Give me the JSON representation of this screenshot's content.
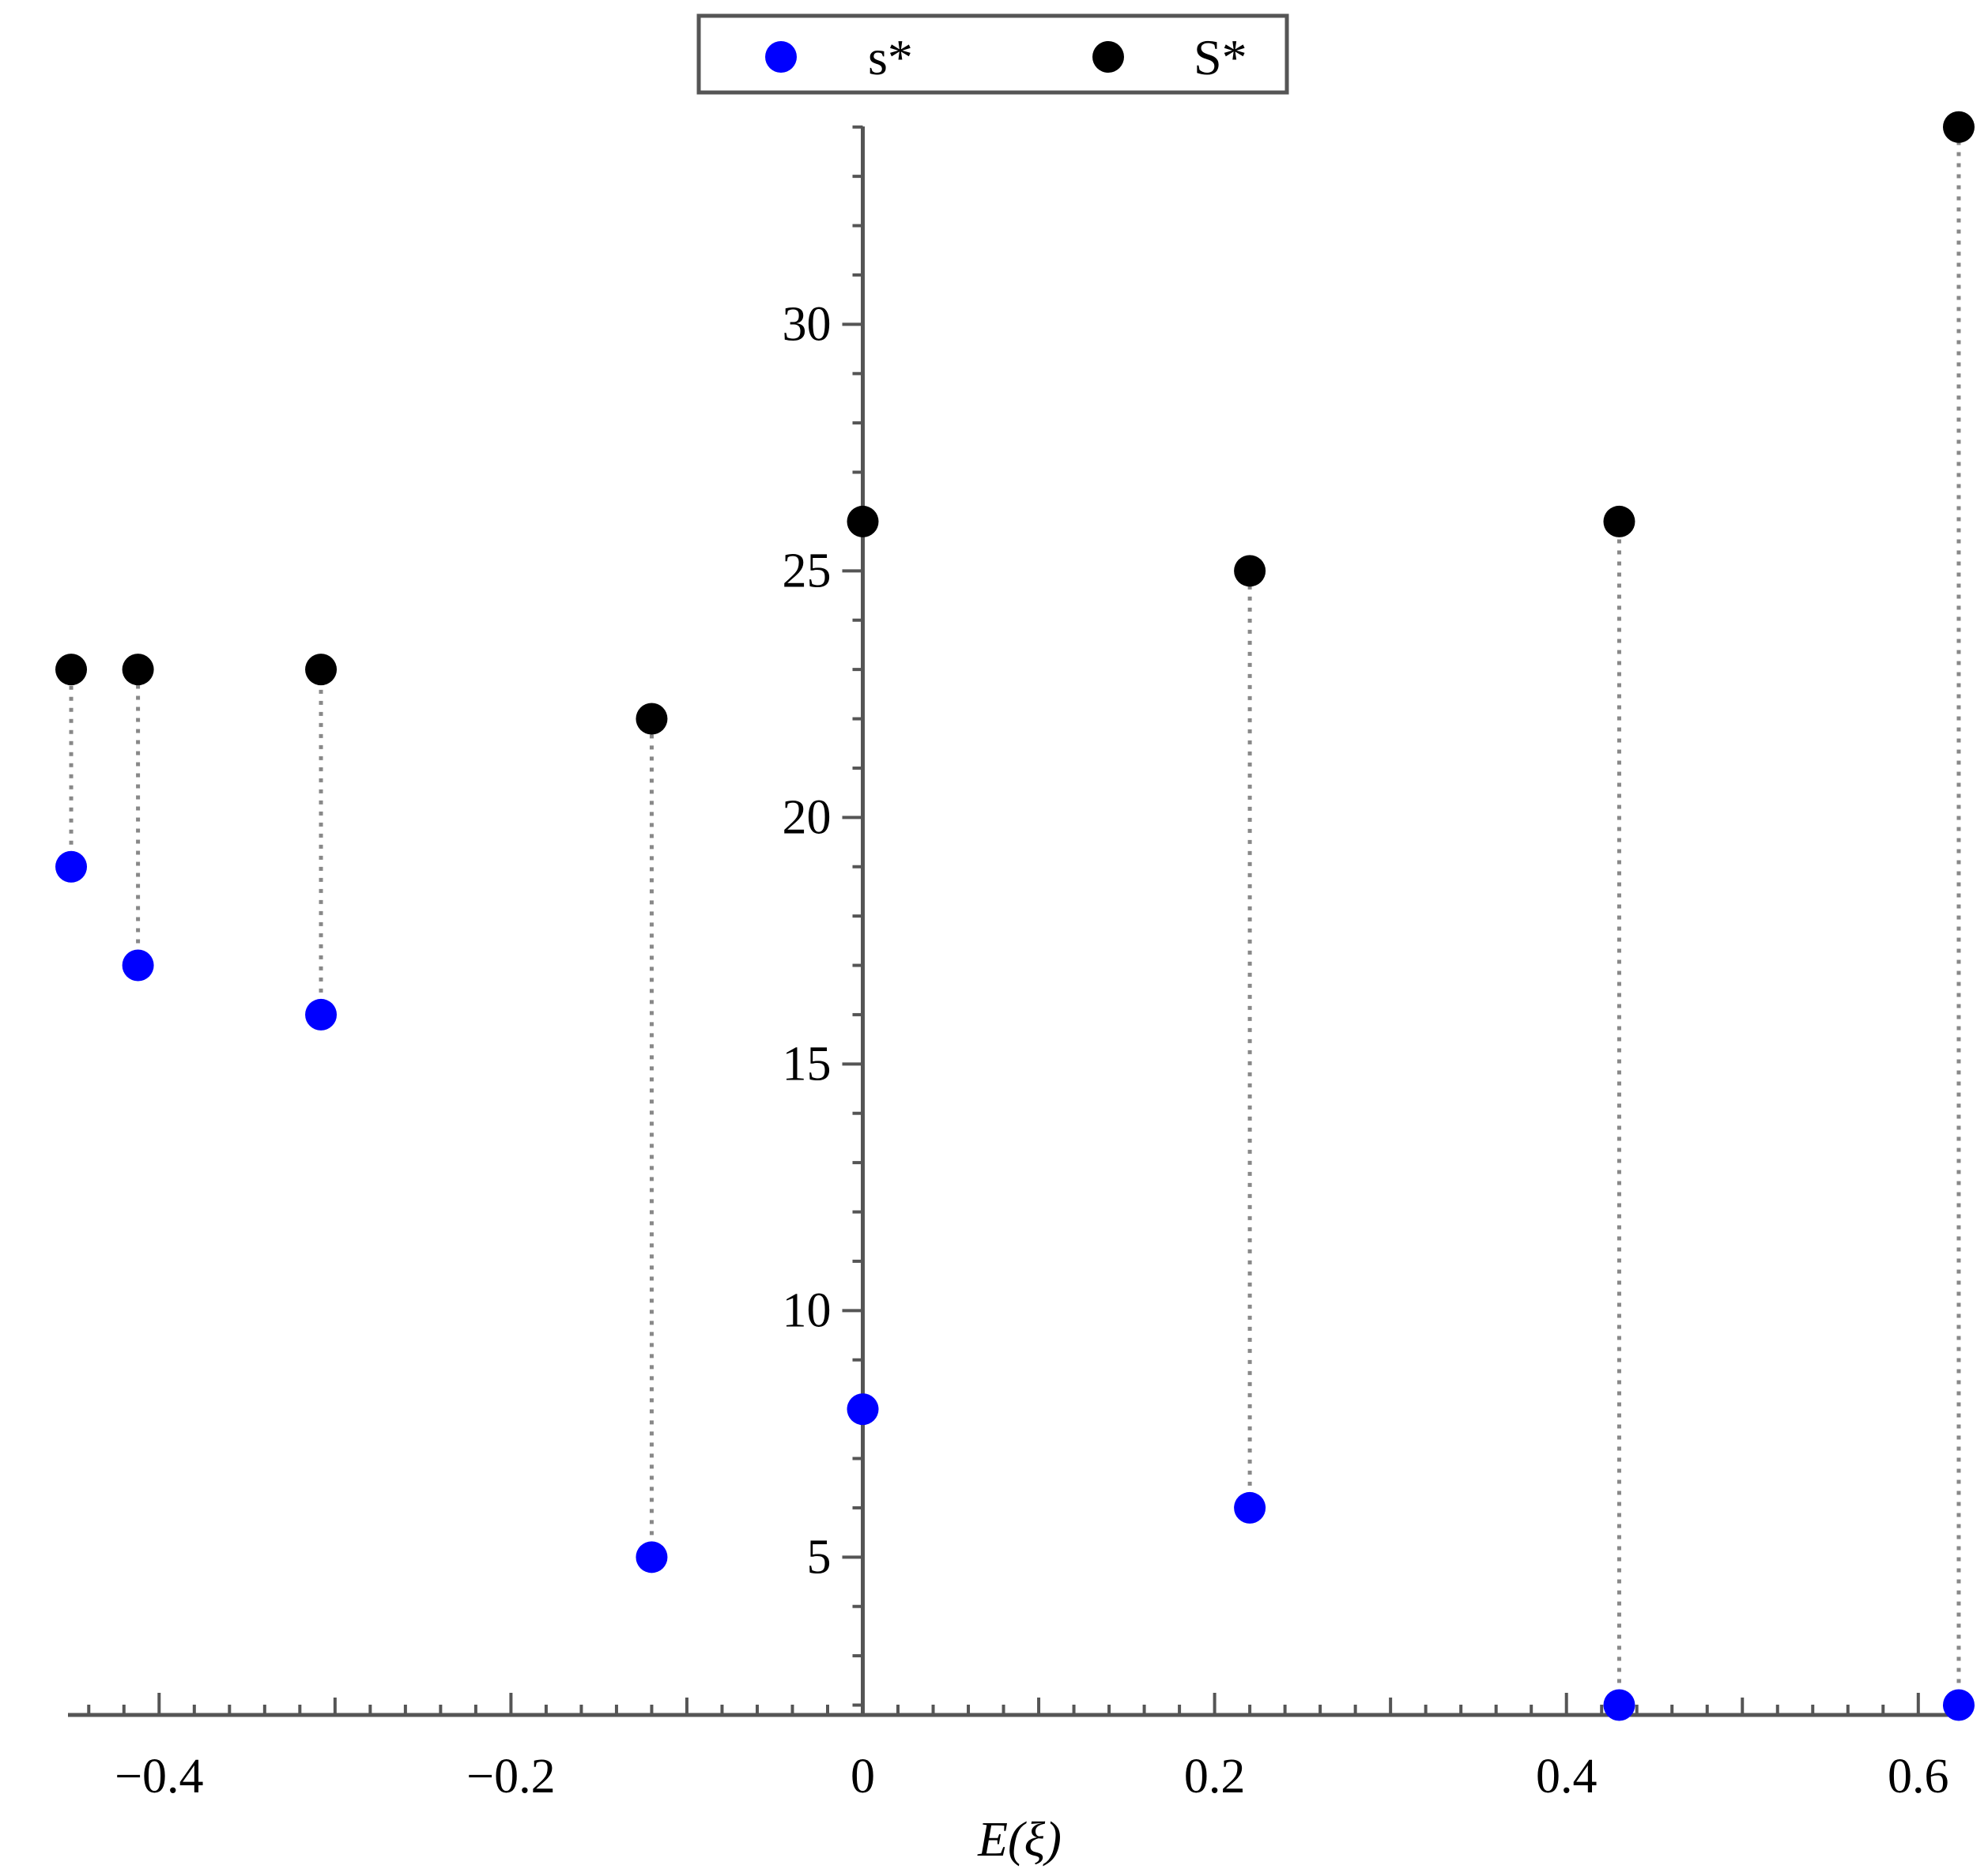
{
  "chart_data": {
    "type": "scatter",
    "title": "",
    "xlabel": "E(ξ)",
    "ylabel": "",
    "xlim": [
      -0.45,
      0.63
    ],
    "ylim": [
      1.8,
      34
    ],
    "x_ticks": [
      -0.4,
      -0.2,
      0,
      0.2,
      0.4,
      0.6
    ],
    "x_tick_labels": [
      "−0.4",
      "−0.2",
      "0",
      "0.2",
      "0.4",
      "0.6"
    ],
    "y_ticks": [
      5,
      10,
      15,
      20,
      25,
      30
    ],
    "y_tick_labels": [
      "5",
      "10",
      "15",
      "20",
      "25",
      "30"
    ],
    "grid": false,
    "legend_position": "top-center",
    "x": [
      -0.45,
      -0.412,
      -0.308,
      -0.12,
      0,
      0.22,
      0.43,
      0.623
    ],
    "series": [
      {
        "name": "s*",
        "color": "#0000ff",
        "values": [
          19,
          17,
          16,
          5,
          8,
          6,
          2,
          2
        ]
      },
      {
        "name": "S*",
        "color": "#000000",
        "values": [
          23,
          23,
          23,
          22,
          26,
          25,
          26,
          34
        ]
      }
    ],
    "connectors": "dotted vertical lines from s* to S* at each x"
  }
}
